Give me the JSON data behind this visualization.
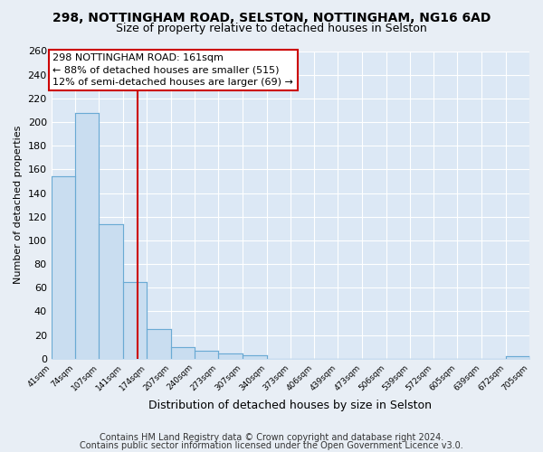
{
  "title1": "298, NOTTINGHAM ROAD, SELSTON, NOTTINGHAM, NG16 6AD",
  "title2": "Size of property relative to detached houses in Selston",
  "xlabel": "Distribution of detached houses by size in Selston",
  "ylabel": "Number of detached properties",
  "bar_edges": [
    41,
    74,
    107,
    141,
    174,
    207,
    240,
    273,
    307,
    340,
    373,
    406,
    439,
    473,
    506,
    539,
    572,
    605,
    639,
    672,
    705
  ],
  "bar_heights": [
    154,
    208,
    114,
    65,
    25,
    10,
    7,
    4,
    3,
    0,
    0,
    0,
    0,
    0,
    0,
    0,
    0,
    0,
    0,
    2
  ],
  "bar_color": "#c9ddf0",
  "bar_edgecolor": "#6aaad4",
  "vline_x": 161,
  "vline_color": "#cc0000",
  "annotation_line1": "298 NOTTINGHAM ROAD: 161sqm",
  "annotation_line2": "← 88% of detached houses are smaller (515)",
  "annotation_line3": "12% of semi-detached houses are larger (69) →",
  "annotation_box_edgecolor": "#cc0000",
  "annotation_box_facecolor": "#ffffff",
  "ylim": [
    0,
    260
  ],
  "yticks": [
    0,
    20,
    40,
    60,
    80,
    100,
    120,
    140,
    160,
    180,
    200,
    220,
    240,
    260
  ],
  "tick_labels": [
    "41sqm",
    "74sqm",
    "107sqm",
    "141sqm",
    "174sqm",
    "207sqm",
    "240sqm",
    "273sqm",
    "307sqm",
    "340sqm",
    "373sqm",
    "406sqm",
    "439sqm",
    "473sqm",
    "506sqm",
    "539sqm",
    "572sqm",
    "605sqm",
    "639sqm",
    "672sqm",
    "705sqm"
  ],
  "footer1": "Contains HM Land Registry data © Crown copyright and database right 2024.",
  "footer2": "Contains public sector information licensed under the Open Government Licence v3.0.",
  "bg_color": "#e8eef5",
  "plot_bg_color": "#dce8f5",
  "grid_color": "#ffffff",
  "title1_fontsize": 10,
  "title2_fontsize": 9,
  "xlabel_fontsize": 9,
  "ylabel_fontsize": 8,
  "footer_fontsize": 7,
  "annot_fontsize": 8
}
